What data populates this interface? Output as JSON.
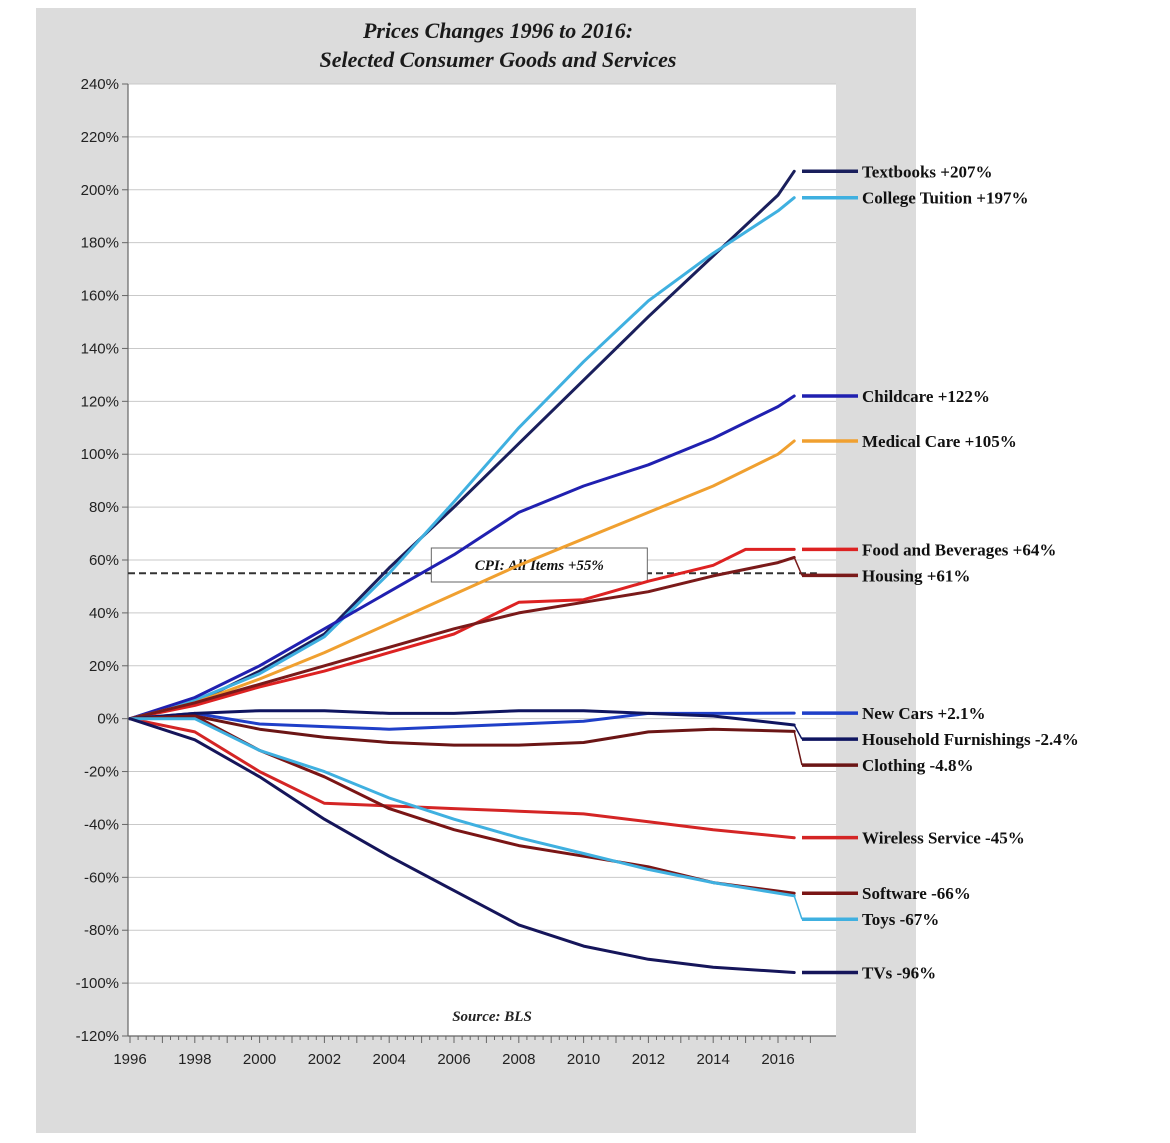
{
  "chart_data": {
    "type": "line",
    "title": "Prices Changes 1996 to 2016:",
    "subtitle": "Selected Consumer Goods and Services",
    "xlabel": "",
    "ylabel": "",
    "xlim": [
      1996,
      2018
    ],
    "ylim": [
      -120,
      240
    ],
    "yticks": [
      240,
      220,
      200,
      180,
      160,
      140,
      120,
      100,
      80,
      60,
      40,
      20,
      0,
      -20,
      -40,
      -60,
      -80,
      -100,
      -120
    ],
    "ytick_labels": [
      "240%",
      "220%",
      "200%",
      "180%",
      "160%",
      "140%",
      "120%",
      "100%",
      "80%",
      "60%",
      "40%",
      "20%",
      "0%",
      "-20%",
      "-40%",
      "-60%",
      "-80%",
      "-100%",
      "-120%"
    ],
    "xticks": [
      1996,
      1998,
      2000,
      2002,
      2004,
      2006,
      2008,
      2010,
      2012,
      2014,
      2016
    ],
    "xtick_labels": [
      "1996",
      "1998",
      "2000",
      "2002",
      "2004",
      "2006",
      "2008",
      "2010",
      "2012",
      "2014",
      "2016"
    ],
    "grid": "horizontal",
    "source": "Source: BLS",
    "reference_line": {
      "label": "CPI: All Items +55%",
      "value": 55
    },
    "series": [
      {
        "name": "Textbooks +207%",
        "color": "#1a1f5c",
        "points": [
          [
            1996,
            0
          ],
          [
            1998,
            6
          ],
          [
            2000,
            18
          ],
          [
            2002,
            32
          ],
          [
            2004,
            57
          ],
          [
            2006,
            80
          ],
          [
            2008,
            104
          ],
          [
            2010,
            128
          ],
          [
            2012,
            152
          ],
          [
            2014,
            175
          ],
          [
            2016,
            198
          ],
          [
            2016.5,
            207
          ]
        ]
      },
      {
        "name": "College Tuition +197%",
        "color": "#3fb0e0",
        "points": [
          [
            1996,
            0
          ],
          [
            1998,
            7
          ],
          [
            2000,
            17
          ],
          [
            2002,
            31
          ],
          [
            2004,
            55
          ],
          [
            2006,
            82
          ],
          [
            2008,
            110
          ],
          [
            2010,
            135
          ],
          [
            2012,
            158
          ],
          [
            2014,
            176
          ],
          [
            2016,
            192
          ],
          [
            2016.5,
            197
          ]
        ]
      },
      {
        "name": "Childcare +122%",
        "color": "#2020b0",
        "points": [
          [
            1996,
            0
          ],
          [
            1998,
            8
          ],
          [
            2000,
            20
          ],
          [
            2002,
            34
          ],
          [
            2004,
            48
          ],
          [
            2006,
            62
          ],
          [
            2008,
            78
          ],
          [
            2010,
            88
          ],
          [
            2012,
            96
          ],
          [
            2014,
            106
          ],
          [
            2016,
            118
          ],
          [
            2016.5,
            122
          ]
        ]
      },
      {
        "name": "Medical Care +105%",
        "color": "#f0a030",
        "points": [
          [
            1996,
            0
          ],
          [
            1998,
            6
          ],
          [
            2000,
            15
          ],
          [
            2002,
            25
          ],
          [
            2004,
            36
          ],
          [
            2006,
            47
          ],
          [
            2008,
            58
          ],
          [
            2010,
            68
          ],
          [
            2012,
            78
          ],
          [
            2014,
            88
          ],
          [
            2016,
            100
          ],
          [
            2016.5,
            105
          ]
        ]
      },
      {
        "name": "Food and Beverages +64%",
        "color": "#dd2222",
        "points": [
          [
            1996,
            0
          ],
          [
            1998,
            5
          ],
          [
            2000,
            12
          ],
          [
            2002,
            18
          ],
          [
            2004,
            25
          ],
          [
            2006,
            32
          ],
          [
            2008,
            44
          ],
          [
            2010,
            45
          ],
          [
            2012,
            52
          ],
          [
            2014,
            58
          ],
          [
            2015,
            64
          ],
          [
            2016.5,
            64
          ]
        ]
      },
      {
        "name": "Housing +61%",
        "color": "#7a1a1a",
        "points": [
          [
            1996,
            0
          ],
          [
            1998,
            6
          ],
          [
            2000,
            13
          ],
          [
            2002,
            20
          ],
          [
            2004,
            27
          ],
          [
            2006,
            34
          ],
          [
            2008,
            40
          ],
          [
            2010,
            44
          ],
          [
            2012,
            48
          ],
          [
            2014,
            54
          ],
          [
            2016,
            59
          ],
          [
            2016.5,
            61
          ]
        ]
      },
      {
        "name": "New Cars +2.1%",
        "color": "#1f3fc8",
        "points": [
          [
            1996,
            0
          ],
          [
            1998,
            2
          ],
          [
            2000,
            -2
          ],
          [
            2002,
            -3
          ],
          [
            2004,
            -4
          ],
          [
            2006,
            -3
          ],
          [
            2008,
            -2
          ],
          [
            2010,
            -1
          ],
          [
            2012,
            2
          ],
          [
            2014,
            2
          ],
          [
            2016.5,
            2.1
          ]
        ]
      },
      {
        "name": "Household Furnishings -2.4%",
        "color": "#0f1560",
        "points": [
          [
            1996,
            0
          ],
          [
            1998,
            2
          ],
          [
            2000,
            3
          ],
          [
            2002,
            3
          ],
          [
            2004,
            2
          ],
          [
            2006,
            2
          ],
          [
            2008,
            3
          ],
          [
            2010,
            3
          ],
          [
            2012,
            2
          ],
          [
            2014,
            1
          ],
          [
            2016.5,
            -2.4
          ]
        ]
      },
      {
        "name": "Clothing -4.8%",
        "color": "#6b1515",
        "points": [
          [
            1996,
            0
          ],
          [
            1998,
            1
          ],
          [
            2000,
            -4
          ],
          [
            2002,
            -7
          ],
          [
            2004,
            -9
          ],
          [
            2006,
            -10
          ],
          [
            2008,
            -10
          ],
          [
            2010,
            -9
          ],
          [
            2012,
            -5
          ],
          [
            2014,
            -4
          ],
          [
            2016.5,
            -4.8
          ]
        ]
      },
      {
        "name": "Wireless Service -45%",
        "color": "#d42525",
        "points": [
          [
            1996,
            0
          ],
          [
            1998,
            -5
          ],
          [
            2000,
            -20
          ],
          [
            2002,
            -32
          ],
          [
            2004,
            -33
          ],
          [
            2006,
            -34
          ],
          [
            2008,
            -35
          ],
          [
            2010,
            -36
          ],
          [
            2012,
            -39
          ],
          [
            2014,
            -42
          ],
          [
            2016.5,
            -45
          ]
        ]
      },
      {
        "name": "Software -66%",
        "color": "#7a1515",
        "points": [
          [
            1996,
            0
          ],
          [
            1998,
            1
          ],
          [
            2000,
            -12
          ],
          [
            2002,
            -22
          ],
          [
            2004,
            -34
          ],
          [
            2006,
            -42
          ],
          [
            2008,
            -48
          ],
          [
            2010,
            -52
          ],
          [
            2012,
            -56
          ],
          [
            2014,
            -62
          ],
          [
            2016.5,
            -66
          ]
        ]
      },
      {
        "name": "Toys -67%",
        "color": "#3fb0e0",
        "points": [
          [
            1996,
            0
          ],
          [
            1998,
            0
          ],
          [
            2000,
            -12
          ],
          [
            2002,
            -20
          ],
          [
            2004,
            -30
          ],
          [
            2006,
            -38
          ],
          [
            2008,
            -45
          ],
          [
            2010,
            -51
          ],
          [
            2012,
            -57
          ],
          [
            2014,
            -62
          ],
          [
            2016.5,
            -67
          ]
        ]
      },
      {
        "name": "TVs -96%",
        "color": "#15155a",
        "points": [
          [
            1996,
            0
          ],
          [
            1998,
            -8
          ],
          [
            2000,
            -22
          ],
          [
            2002,
            -38
          ],
          [
            2004,
            -52
          ],
          [
            2006,
            -65
          ],
          [
            2008,
            -78
          ],
          [
            2010,
            -86
          ],
          [
            2012,
            -91
          ],
          [
            2014,
            -94
          ],
          [
            2016.5,
            -96
          ]
        ]
      }
    ],
    "legend_placement": "right, at series end values"
  }
}
